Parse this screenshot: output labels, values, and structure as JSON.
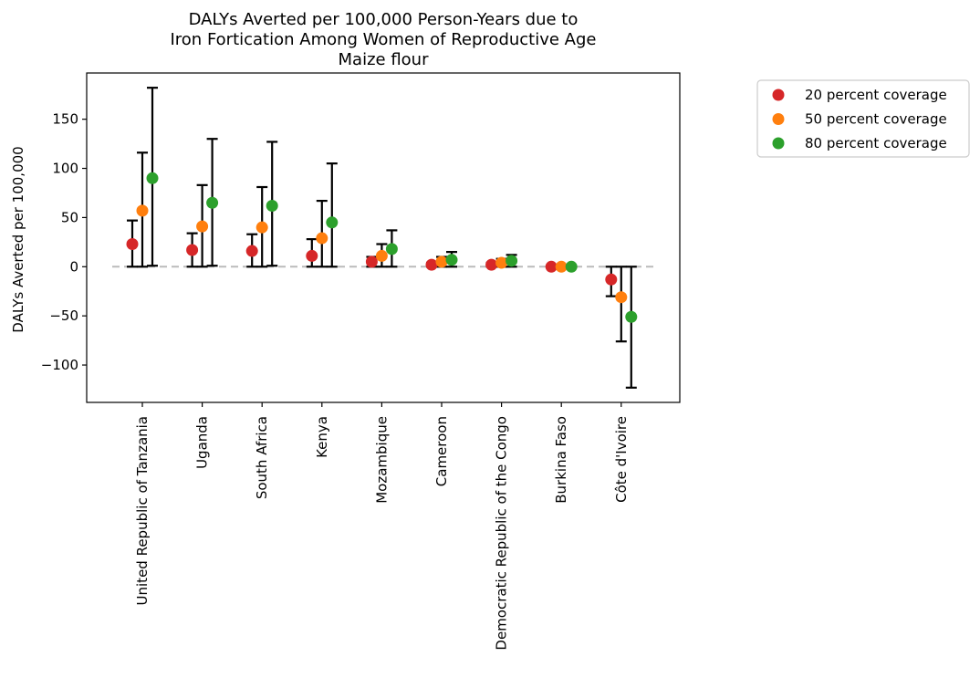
{
  "chart_data": {
    "type": "scatter",
    "title": [
      "DALYs Averted per 100,000 Person-Years due to",
      "Iron Fortication Among Women of Reproductive Age",
      "Maize flour"
    ],
    "xlabel": "",
    "ylabel": "DALYs Averted per 100,000",
    "ylim": [
      -138,
      197
    ],
    "yticks": [
      150,
      100,
      50,
      0,
      -50,
      -100
    ],
    "ytick_labels": [
      "150",
      "100",
      "50",
      "0",
      "−50",
      "−100"
    ],
    "categories": [
      "United Republic of Tanzania",
      "Uganda",
      "South Africa",
      "Kenya",
      "Mozambique",
      "Cameroon",
      "Democratic Republic of the Congo",
      "Burkina Faso",
      "Côte d'Ivoire"
    ],
    "reference_line": {
      "y": 0,
      "style": "dashed",
      "color": "#bbbbbb"
    },
    "legend_position": "outside right",
    "grid": false,
    "series": [
      {
        "name": "20 percent coverage",
        "color": "#d62728",
        "values": [
          23,
          17,
          16,
          11,
          5,
          2,
          2,
          0,
          -13
        ],
        "lower": [
          0,
          0,
          0,
          0,
          0,
          0,
          0,
          0,
          -30
        ],
        "upper": [
          47,
          34,
          33,
          28,
          10,
          4,
          4,
          0,
          0
        ]
      },
      {
        "name": "50 percent coverage",
        "color": "#ff7f0e",
        "values": [
          57,
          41,
          40,
          29,
          11,
          5,
          4,
          0,
          -31
        ],
        "lower": [
          0,
          0,
          0,
          0,
          0,
          0,
          0,
          0,
          -76
        ],
        "upper": [
          116,
          83,
          81,
          67,
          23,
          10,
          8,
          0,
          0
        ]
      },
      {
        "name": "80 percent coverage",
        "color": "#2ca02c",
        "values": [
          90,
          65,
          62,
          45,
          18,
          7,
          6,
          0,
          -51
        ],
        "lower": [
          1,
          1,
          1,
          0,
          0,
          0,
          0,
          0,
          -123
        ],
        "upper": [
          182,
          130,
          127,
          105,
          37,
          15,
          12,
          0,
          0
        ]
      }
    ]
  }
}
